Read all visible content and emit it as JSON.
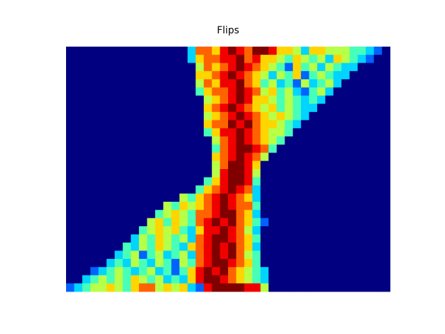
{
  "chart_data": {
    "type": "heatmap",
    "title": "Flips",
    "colormap": "jet",
    "zlim": [
      0,
      9
    ],
    "z": [
      [
        0,
        0,
        0,
        0,
        0,
        0,
        0,
        0,
        0,
        0,
        0,
        0,
        0,
        0,
        0,
        3,
        7,
        7,
        6,
        8,
        9,
        8,
        7,
        9,
        9,
        8,
        6,
        6,
        5,
        3,
        6,
        6,
        5,
        5,
        5,
        4,
        4,
        3,
        2,
        0
      ],
      [
        0,
        0,
        0,
        0,
        0,
        0,
        0,
        0,
        0,
        0,
        0,
        0,
        0,
        0,
        0,
        3,
        6,
        7,
        7,
        8,
        8,
        9,
        7,
        8,
        6,
        6,
        5,
        4,
        6,
        5,
        4,
        5,
        3,
        6,
        5,
        4,
        3,
        2,
        0,
        0
      ],
      [
        0,
        0,
        0,
        0,
        0,
        0,
        0,
        0,
        0,
        0,
        0,
        0,
        0,
        0,
        0,
        0,
        5,
        7,
        6,
        7,
        8,
        9,
        8,
        7,
        6,
        5,
        4,
        2,
        6,
        4,
        5,
        3,
        5,
        4,
        3,
        3,
        0,
        0,
        0,
        0
      ],
      [
        0,
        0,
        0,
        0,
        0,
        0,
        0,
        0,
        0,
        0,
        0,
        0,
        0,
        0,
        0,
        0,
        6,
        6,
        7,
        8,
        9,
        8,
        7,
        6,
        5,
        3,
        5,
        4,
        6,
        2,
        4,
        5,
        4,
        3,
        3,
        0,
        0,
        0,
        0,
        0
      ],
      [
        0,
        0,
        0,
        0,
        0,
        0,
        0,
        0,
        0,
        0,
        0,
        0,
        0,
        0,
        0,
        0,
        5,
        7,
        6,
        8,
        8,
        9,
        7,
        6,
        4,
        5,
        3,
        4,
        2,
        5,
        3,
        4,
        5,
        3,
        0,
        0,
        0,
        0,
        0,
        0
      ],
      [
        0,
        0,
        0,
        0,
        0,
        0,
        0,
        0,
        0,
        0,
        0,
        0,
        0,
        0,
        0,
        0,
        4,
        6,
        7,
        7,
        8,
        9,
        8,
        7,
        5,
        6,
        4,
        5,
        3,
        2,
        4,
        5,
        3,
        0,
        0,
        0,
        0,
        0,
        0,
        0
      ],
      [
        0,
        0,
        0,
        0,
        0,
        0,
        0,
        0,
        0,
        0,
        0,
        0,
        0,
        0,
        0,
        0,
        0,
        5,
        6,
        7,
        8,
        9,
        8,
        6,
        6,
        5,
        4,
        5,
        4,
        3,
        4,
        3,
        0,
        0,
        0,
        0,
        0,
        0,
        0,
        0
      ],
      [
        0,
        0,
        0,
        0,
        0,
        0,
        0,
        0,
        0,
        0,
        0,
        0,
        0,
        0,
        0,
        0,
        0,
        6,
        7,
        8,
        9,
        8,
        7,
        6,
        5,
        6,
        4,
        5,
        4,
        3,
        3,
        0,
        0,
        0,
        0,
        0,
        0,
        0,
        0,
        0
      ],
      [
        0,
        0,
        0,
        0,
        0,
        0,
        0,
        0,
        0,
        0,
        0,
        0,
        0,
        0,
        0,
        0,
        0,
        5,
        6,
        7,
        8,
        9,
        8,
        7,
        6,
        5,
        6,
        5,
        4,
        3,
        0,
        0,
        0,
        0,
        0,
        0,
        0,
        0,
        0,
        0
      ],
      [
        0,
        0,
        0,
        0,
        0,
        0,
        0,
        0,
        0,
        0,
        0,
        0,
        0,
        0,
        0,
        0,
        0,
        6,
        7,
        7,
        9,
        8,
        9,
        7,
        6,
        6,
        5,
        4,
        3,
        0,
        0,
        0,
        0,
        0,
        0,
        0,
        0,
        0,
        0,
        0
      ],
      [
        0,
        0,
        0,
        0,
        0,
        0,
        0,
        0,
        0,
        0,
        0,
        0,
        0,
        0,
        0,
        0,
        0,
        4,
        6,
        8,
        8,
        9,
        8,
        7,
        6,
        5,
        5,
        4,
        0,
        0,
        0,
        0,
        0,
        0,
        0,
        0,
        0,
        0,
        0,
        0
      ],
      [
        0,
        0,
        0,
        0,
        0,
        0,
        0,
        0,
        0,
        0,
        0,
        0,
        0,
        0,
        0,
        0,
        0,
        0,
        5,
        7,
        8,
        9,
        8,
        7,
        6,
        5,
        4,
        0,
        0,
        0,
        0,
        0,
        0,
        0,
        0,
        0,
        0,
        0,
        0,
        0
      ],
      [
        0,
        0,
        0,
        0,
        0,
        0,
        0,
        0,
        0,
        0,
        0,
        0,
        0,
        0,
        0,
        0,
        0,
        0,
        4,
        7,
        8,
        9,
        9,
        8,
        7,
        4,
        0,
        0,
        0,
        0,
        0,
        0,
        0,
        0,
        0,
        0,
        0,
        0,
        0,
        0
      ],
      [
        0,
        0,
        0,
        0,
        0,
        0,
        0,
        0,
        0,
        0,
        0,
        0,
        0,
        0,
        0,
        0,
        0,
        0,
        6,
        7,
        8,
        9,
        8,
        7,
        5,
        0,
        0,
        0,
        0,
        0,
        0,
        0,
        0,
        0,
        0,
        0,
        0,
        0,
        0,
        0
      ],
      [
        0,
        0,
        0,
        0,
        0,
        0,
        0,
        0,
        0,
        0,
        0,
        0,
        0,
        0,
        0,
        0,
        0,
        0,
        5,
        7,
        9,
        9,
        8,
        6,
        0,
        0,
        0,
        0,
        0,
        0,
        0,
        0,
        0,
        0,
        0,
        0,
        0,
        0,
        0,
        0
      ],
      [
        0,
        0,
        0,
        0,
        0,
        0,
        0,
        0,
        0,
        0,
        0,
        0,
        0,
        0,
        0,
        0,
        0,
        0,
        5,
        8,
        9,
        9,
        8,
        5,
        0,
        0,
        0,
        0,
        0,
        0,
        0,
        0,
        0,
        0,
        0,
        0,
        0,
        0,
        0,
        0
      ],
      [
        0,
        0,
        0,
        0,
        0,
        0,
        0,
        0,
        0,
        0,
        0,
        0,
        0,
        0,
        0,
        0,
        0,
        4,
        6,
        8,
        9,
        9,
        8,
        4,
        0,
        0,
        0,
        0,
        0,
        0,
        0,
        0,
        0,
        0,
        0,
        0,
        0,
        0,
        0,
        0
      ],
      [
        0,
        0,
        0,
        0,
        0,
        0,
        0,
        0,
        0,
        0,
        0,
        0,
        0,
        0,
        0,
        0,
        4,
        6,
        7,
        8,
        9,
        8,
        7,
        3,
        0,
        0,
        0,
        0,
        0,
        0,
        0,
        0,
        0,
        0,
        0,
        0,
        0,
        0,
        0,
        0
      ],
      [
        0,
        0,
        0,
        0,
        0,
        0,
        0,
        0,
        0,
        0,
        0,
        0,
        0,
        0,
        5,
        4,
        6,
        7,
        8,
        9,
        8,
        7,
        6,
        3,
        0,
        0,
        0,
        0,
        0,
        0,
        0,
        0,
        0,
        0,
        0,
        0,
        0,
        0,
        0,
        0
      ],
      [
        0,
        0,
        0,
        0,
        0,
        0,
        0,
        0,
        0,
        0,
        0,
        0,
        5,
        4,
        6,
        5,
        6,
        7,
        8,
        9,
        8,
        7,
        7,
        4,
        0,
        0,
        0,
        0,
        0,
        0,
        0,
        0,
        0,
        0,
        0,
        0,
        0,
        0,
        0,
        0
      ],
      [
        0,
        0,
        0,
        0,
        0,
        0,
        0,
        0,
        0,
        0,
        0,
        4,
        5,
        6,
        5,
        4,
        7,
        7,
        8,
        9,
        9,
        7,
        6,
        3,
        0,
        0,
        0,
        0,
        0,
        0,
        0,
        0,
        0,
        0,
        0,
        0,
        0,
        0,
        0,
        0
      ],
      [
        0,
        0,
        0,
        0,
        0,
        0,
        0,
        0,
        0,
        0,
        5,
        6,
        4,
        6,
        5,
        4,
        7,
        8,
        9,
        8,
        9,
        7,
        6,
        4,
        2,
        0,
        0,
        0,
        0,
        0,
        0,
        0,
        0,
        0,
        0,
        0,
        0,
        0,
        0,
        0
      ],
      [
        0,
        0,
        0,
        0,
        0,
        0,
        0,
        0,
        0,
        4,
        5,
        6,
        5,
        6,
        4,
        3,
        6,
        8,
        8,
        9,
        8,
        7,
        5,
        3,
        0,
        0,
        0,
        0,
        0,
        0,
        0,
        0,
        0,
        0,
        0,
        0,
        0,
        0,
        0,
        0
      ],
      [
        0,
        0,
        0,
        0,
        0,
        0,
        0,
        0,
        3,
        5,
        4,
        6,
        5,
        4,
        5,
        3,
        7,
        8,
        9,
        9,
        8,
        7,
        6,
        4,
        0,
        0,
        0,
        0,
        0,
        0,
        0,
        0,
        0,
        0,
        0,
        0,
        0,
        0,
        0,
        0
      ],
      [
        0,
        0,
        0,
        0,
        0,
        0,
        0,
        4,
        3,
        5,
        4,
        6,
        5,
        4,
        3,
        6,
        7,
        8,
        9,
        8,
        9,
        7,
        6,
        3,
        0,
        0,
        0,
        0,
        0,
        0,
        0,
        0,
        0,
        0,
        0,
        0,
        0,
        0,
        0,
        0
      ],
      [
        0,
        0,
        0,
        0,
        0,
        0,
        3,
        4,
        5,
        2,
        4,
        5,
        3,
        4,
        5,
        3,
        7,
        8,
        9,
        8,
        9,
        7,
        5,
        4,
        0,
        0,
        0,
        0,
        0,
        0,
        0,
        0,
        0,
        0,
        0,
        0,
        0,
        0,
        0,
        0
      ],
      [
        0,
        0,
        0,
        0,
        0,
        3,
        4,
        3,
        5,
        4,
        3,
        5,
        4,
        2,
        5,
        4,
        7,
        8,
        9,
        9,
        8,
        7,
        6,
        4,
        0,
        0,
        0,
        0,
        0,
        0,
        0,
        0,
        0,
        0,
        0,
        0,
        0,
        0,
        0,
        0
      ],
      [
        0,
        0,
        0,
        2,
        3,
        4,
        5,
        4,
        3,
        4,
        5,
        3,
        4,
        2,
        4,
        6,
        8,
        9,
        8,
        9,
        7,
        6,
        5,
        4,
        3,
        0,
        0,
        0,
        0,
        0,
        0,
        0,
        0,
        0,
        0,
        0,
        0,
        0,
        0,
        0
      ],
      [
        0,
        0,
        3,
        4,
        5,
        4,
        5,
        4,
        6,
        5,
        4,
        5,
        3,
        4,
        3,
        6,
        8,
        9,
        9,
        8,
        7,
        6,
        5,
        4,
        3,
        0,
        0,
        0,
        0,
        0,
        0,
        0,
        0,
        0,
        0,
        0,
        0,
        0,
        0,
        0
      ],
      [
        2,
        3,
        4,
        5,
        5,
        6,
        5,
        4,
        6,
        7,
        7,
        5,
        6,
        5,
        6,
        3,
        2,
        8,
        9,
        9,
        9,
        9,
        8,
        8,
        5,
        0,
        0,
        0,
        0,
        0,
        0,
        0,
        0,
        0,
        0,
        0,
        0,
        0,
        0,
        0
      ]
    ]
  }
}
